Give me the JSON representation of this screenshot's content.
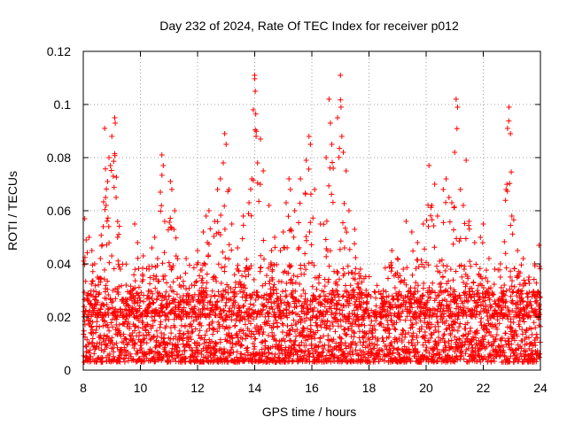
{
  "chart_data": {
    "type": "scatter",
    "title": "Day 232 of 2024, Rate Of TEC Index for receiver p012",
    "xlabel": "GPS time / hours",
    "ylabel": "ROTI / TECUs",
    "xlim": [
      8,
      24
    ],
    "ylim": [
      0,
      0.12
    ],
    "xticks": [
      8,
      10,
      12,
      14,
      16,
      18,
      20,
      22,
      24
    ],
    "xtick_labels": [
      "8",
      "10",
      "12",
      "14",
      "16",
      "18",
      "20",
      "22",
      "24"
    ],
    "yticks": [
      0,
      0.02,
      0.04,
      0.06,
      0.08,
      0.1,
      0.12
    ],
    "ytick_labels": [
      "0",
      "0.02",
      "0.04",
      "0.06",
      "0.08",
      "0.1",
      "0.12"
    ],
    "grid": true,
    "marker": "+",
    "color": "#ff0000",
    "series": [
      {
        "name": "ROTI",
        "points": [
          [
            8.05,
            0.057
          ],
          [
            8.1,
            0.049
          ],
          [
            8.2,
            0.05
          ],
          [
            8.3,
            0.045
          ],
          [
            8.4,
            0.04
          ],
          [
            8.5,
            0.035
          ],
          [
            8.6,
            0.042
          ],
          [
            8.7,
            0.054
          ],
          [
            8.75,
            0.091
          ],
          [
            8.8,
            0.062
          ],
          [
            8.85,
            0.071
          ],
          [
            8.9,
            0.08
          ],
          [
            8.95,
            0.077
          ],
          [
            9.0,
            0.088
          ],
          [
            9.05,
            0.073
          ],
          [
            9.1,
            0.095
          ],
          [
            9.12,
            0.093
          ],
          [
            9.15,
            0.065
          ],
          [
            9.2,
            0.05
          ],
          [
            9.3,
            0.038
          ],
          [
            9.5,
            0.032
          ],
          [
            9.8,
            0.055
          ],
          [
            9.9,
            0.048
          ],
          [
            10.1,
            0.043
          ],
          [
            10.3,
            0.038
          ],
          [
            10.4,
            0.046
          ],
          [
            10.5,
            0.05
          ],
          [
            10.6,
            0.042
          ],
          [
            10.7,
            0.067
          ],
          [
            10.75,
            0.081
          ],
          [
            10.8,
            0.077
          ],
          [
            10.85,
            0.056
          ],
          [
            11.05,
            0.071
          ],
          [
            11.1,
            0.068
          ],
          [
            11.2,
            0.06
          ],
          [
            11.4,
            0.035
          ],
          [
            11.6,
            0.042
          ],
          [
            11.8,
            0.032
          ],
          [
            12.0,
            0.045
          ],
          [
            12.2,
            0.052
          ],
          [
            12.3,
            0.058
          ],
          [
            12.4,
            0.06
          ],
          [
            12.6,
            0.056
          ],
          [
            12.7,
            0.068
          ],
          [
            12.8,
            0.072
          ],
          [
            12.9,
            0.078
          ],
          [
            12.95,
            0.089
          ],
          [
            13.0,
            0.085
          ],
          [
            13.1,
            0.068
          ],
          [
            13.2,
            0.055
          ],
          [
            13.4,
            0.046
          ],
          [
            13.6,
            0.058
          ],
          [
            13.8,
            0.063
          ],
          [
            13.9,
            0.072
          ],
          [
            13.95,
            0.098
          ],
          [
            14.0,
            0.111
          ],
          [
            14.02,
            0.105
          ],
          [
            14.05,
            0.088
          ],
          [
            14.1,
            0.078
          ],
          [
            14.2,
            0.087
          ],
          [
            14.3,
            0.075
          ],
          [
            14.5,
            0.062
          ],
          [
            14.7,
            0.05
          ],
          [
            14.9,
            0.045
          ],
          [
            15.0,
            0.052
          ],
          [
            15.1,
            0.063
          ],
          [
            15.2,
            0.072
          ],
          [
            15.25,
            0.068
          ],
          [
            15.4,
            0.06
          ],
          [
            15.6,
            0.072
          ],
          [
            15.8,
            0.079
          ],
          [
            15.9,
            0.088
          ],
          [
            15.95,
            0.085
          ],
          [
            16.1,
            0.068
          ],
          [
            16.3,
            0.055
          ],
          [
            16.5,
            0.08
          ],
          [
            16.6,
            0.102
          ],
          [
            16.65,
            0.093
          ],
          [
            16.7,
            0.085
          ],
          [
            16.75,
            0.076
          ],
          [
            16.9,
            0.095
          ],
          [
            17.0,
            0.111
          ],
          [
            17.02,
            0.099
          ],
          [
            17.05,
            0.088
          ],
          [
            17.1,
            0.082
          ],
          [
            17.2,
            0.075
          ],
          [
            17.3,
            0.06
          ],
          [
            17.5,
            0.053
          ],
          [
            17.7,
            0.038
          ],
          [
            17.9,
            0.03
          ],
          [
            18.2,
            0.022
          ],
          [
            18.5,
            0.03
          ],
          [
            18.8,
            0.045
          ],
          [
            19.0,
            0.042
          ],
          [
            19.2,
            0.038
          ],
          [
            19.3,
            0.056
          ],
          [
            19.5,
            0.052
          ],
          [
            19.7,
            0.048
          ],
          [
            19.9,
            0.055
          ],
          [
            20.1,
            0.077
          ],
          [
            20.2,
            0.062
          ],
          [
            20.3,
            0.07
          ],
          [
            20.4,
            0.058
          ],
          [
            20.6,
            0.068
          ],
          [
            20.7,
            0.072
          ],
          [
            20.8,
            0.065
          ],
          [
            20.9,
            0.063
          ],
          [
            21.0,
            0.082
          ],
          [
            21.05,
            0.102
          ],
          [
            21.1,
            0.099
          ],
          [
            21.2,
            0.068
          ],
          [
            21.3,
            0.062
          ],
          [
            21.4,
            0.079
          ],
          [
            21.5,
            0.056
          ],
          [
            21.7,
            0.048
          ],
          [
            21.9,
            0.05
          ],
          [
            22.0,
            0.055
          ],
          [
            22.2,
            0.042
          ],
          [
            22.4,
            0.038
          ],
          [
            22.6,
            0.035
          ],
          [
            22.8,
            0.068
          ],
          [
            22.85,
            0.091
          ],
          [
            22.9,
            0.099
          ],
          [
            22.95,
            0.089
          ],
          [
            23.0,
            0.058
          ],
          [
            23.2,
            0.045
          ],
          [
            23.4,
            0.042
          ],
          [
            23.6,
            0.035
          ],
          [
            23.8,
            0.04
          ],
          [
            23.95,
            0.047
          ]
        ],
        "baseline_range": [
          0.003,
          0.03
        ],
        "x_step": 0.012
      }
    ]
  }
}
